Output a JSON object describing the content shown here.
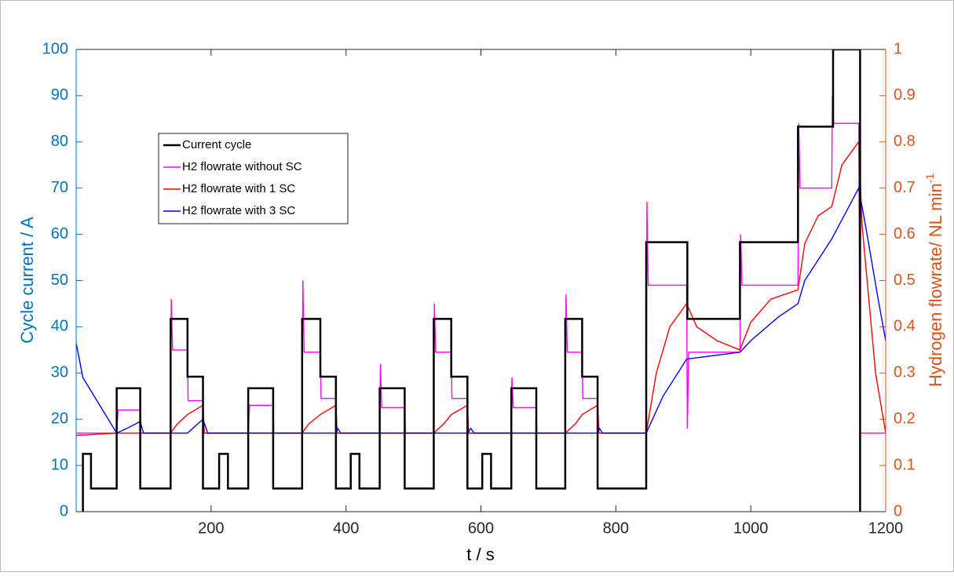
{
  "chart_data": {
    "type": "line",
    "xlabel": "t / s",
    "ylabel": "Cycle current / A",
    "y2label": "Hydrogen flowrate/ NL min",
    "y2label_sup": "-1",
    "xlim": [
      0,
      1200
    ],
    "xticks": [
      200,
      400,
      600,
      800,
      1000,
      1200
    ],
    "ylim": [
      0,
      100
    ],
    "yticks": [
      0,
      10,
      20,
      30,
      40,
      50,
      60,
      70,
      80,
      90,
      100
    ],
    "y2lim": [
      0,
      1
    ],
    "y2ticks": [
      0,
      0.1,
      0.2,
      0.3,
      0.4,
      0.5,
      0.6,
      0.7,
      0.8,
      0.9,
      1
    ],
    "series": [
      {
        "name": "Current cycle",
        "color": "#000000",
        "axis": "y",
        "x": [
          10,
          10,
          22,
          22,
          60,
          60,
          95,
          95,
          140,
          140,
          165,
          165,
          188,
          188,
          212,
          212,
          225,
          225,
          255,
          255,
          292,
          292,
          335,
          335,
          362,
          362,
          385,
          385,
          407,
          407,
          420,
          420,
          450,
          450,
          487,
          487,
          530,
          530,
          556,
          556,
          580,
          580,
          602,
          602,
          615,
          615,
          645,
          645,
          682,
          682,
          725,
          725,
          750,
          750,
          773,
          773,
          845,
          845,
          906,
          906,
          984,
          984,
          1070,
          1070,
          1122,
          1122,
          1162,
          1162
        ],
        "values": [
          0,
          12.5,
          12.5,
          5,
          5,
          26.7,
          26.7,
          5,
          5,
          41.7,
          41.7,
          29.2,
          29.2,
          5,
          5,
          12.5,
          12.5,
          5,
          5,
          26.7,
          26.7,
          5,
          5,
          41.7,
          41.7,
          29.2,
          29.2,
          5,
          5,
          12.5,
          12.5,
          5,
          5,
          26.7,
          26.7,
          5,
          5,
          41.7,
          41.7,
          29.2,
          29.2,
          5,
          5,
          12.5,
          12.5,
          5,
          5,
          26.7,
          26.7,
          5,
          5,
          41.7,
          41.7,
          29.2,
          29.2,
          5,
          5,
          58.3,
          58.3,
          41.7,
          41.7,
          58.3,
          58.3,
          83.3,
          83.3,
          100,
          100,
          0
        ]
      },
      {
        "name": "H2 flowrate without SC",
        "color": "#FF00FF",
        "axis": "y2",
        "x": [
          0,
          60,
          62,
          95,
          96,
          140,
          141,
          143,
          165,
          166,
          188,
          189,
          255,
          257,
          292,
          293,
          335,
          336,
          338,
          362,
          363,
          385,
          386,
          450,
          451,
          453,
          487,
          488,
          530,
          531,
          533,
          556,
          557,
          580,
          581,
          645,
          646,
          648,
          682,
          683,
          725,
          726,
          728,
          750,
          751,
          773,
          774,
          845,
          846,
          848,
          905,
          906,
          908,
          984,
          985,
          987,
          1070,
          1071,
          1073,
          1120,
          1121,
          1123,
          1160,
          1162,
          1200
        ],
        "values": [
          0.17,
          0.17,
          0.22,
          0.22,
          0.17,
          0.17,
          0.46,
          0.35,
          0.35,
          0.24,
          0.24,
          0.17,
          0.17,
          0.23,
          0.23,
          0.17,
          0.17,
          0.5,
          0.345,
          0.345,
          0.245,
          0.245,
          0.17,
          0.17,
          0.32,
          0.225,
          0.225,
          0.17,
          0.17,
          0.45,
          0.345,
          0.345,
          0.245,
          0.245,
          0.17,
          0.17,
          0.29,
          0.225,
          0.225,
          0.17,
          0.17,
          0.47,
          0.345,
          0.345,
          0.245,
          0.245,
          0.17,
          0.17,
          0.67,
          0.49,
          0.49,
          0.18,
          0.345,
          0.345,
          0.6,
          0.49,
          0.49,
          0.84,
          0.7,
          0.7,
          0.9,
          0.84,
          0.84,
          0.17,
          0.17
        ]
      },
      {
        "name": "H2 flowrate with 1 SC",
        "color": "#FF0000",
        "axis": "y2",
        "x": [
          0,
          60,
          140,
          150,
          165,
          188,
          190,
          335,
          345,
          362,
          385,
          387,
          530,
          545,
          556,
          580,
          582,
          725,
          740,
          750,
          773,
          775,
          845,
          860,
          880,
          905,
          920,
          950,
          984,
          1000,
          1030,
          1070,
          1080,
          1100,
          1120,
          1135,
          1160,
          1165,
          1185,
          1200
        ],
        "values": [
          0.165,
          0.17,
          0.17,
          0.19,
          0.21,
          0.23,
          0.17,
          0.17,
          0.19,
          0.21,
          0.23,
          0.17,
          0.17,
          0.19,
          0.21,
          0.23,
          0.17,
          0.17,
          0.19,
          0.21,
          0.23,
          0.17,
          0.17,
          0.3,
          0.4,
          0.45,
          0.4,
          0.37,
          0.35,
          0.41,
          0.46,
          0.48,
          0.58,
          0.64,
          0.66,
          0.75,
          0.8,
          0.62,
          0.3,
          0.17
        ]
      },
      {
        "name": "H2 flowrate with 3 SC",
        "color": "#0000FF",
        "axis": "y2",
        "x": [
          0,
          10,
          60,
          75,
          95,
          100,
          165,
          188,
          195,
          385,
          388,
          392,
          580,
          585,
          590,
          773,
          776,
          780,
          845,
          870,
          905,
          984,
          1000,
          1040,
          1070,
          1080,
          1120,
          1160,
          1170,
          1190,
          1200
        ],
        "values": [
          0.365,
          0.29,
          0.17,
          0.18,
          0.195,
          0.17,
          0.17,
          0.2,
          0.17,
          0.17,
          0.18,
          0.17,
          0.17,
          0.18,
          0.17,
          0.17,
          0.18,
          0.17,
          0.17,
          0.25,
          0.33,
          0.345,
          0.37,
          0.42,
          0.45,
          0.5,
          0.59,
          0.7,
          0.62,
          0.45,
          0.37
        ]
      }
    ]
  }
}
